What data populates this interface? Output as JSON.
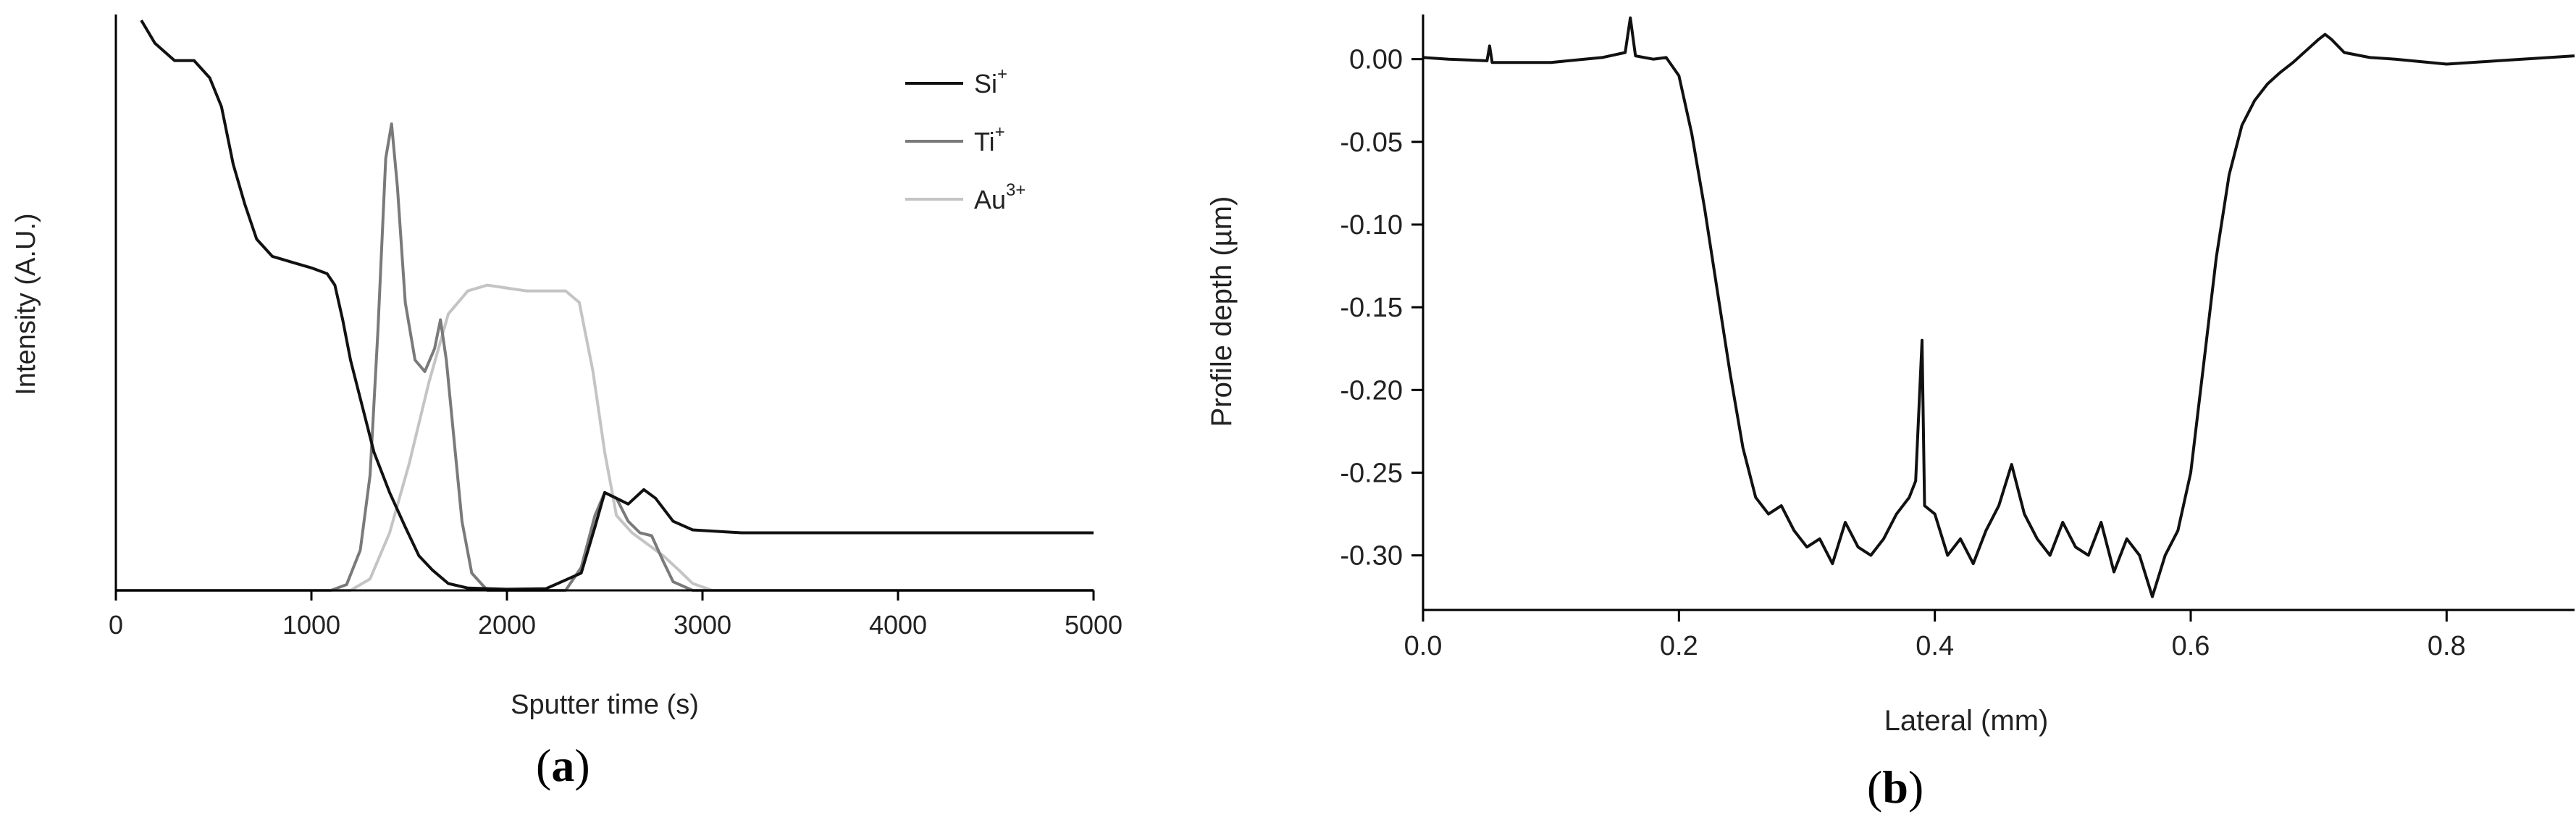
{
  "panel_a": {
    "caption_open": "(",
    "caption_letter": "a",
    "caption_close": ")"
  },
  "panel_b": {
    "caption_open": "(",
    "caption_letter": "b",
    "caption_close": ")"
  },
  "chart_data": [
    {
      "type": "line",
      "panel": "a",
      "xlabel": "Sputter time (s)",
      "ylabel": "Intensity (A.U.)",
      "xlim": [
        0,
        5000
      ],
      "ylim": [
        0,
        1.0
      ],
      "xticks": [
        0,
        1000,
        2000,
        3000,
        4000,
        5000
      ],
      "yticks_shown": false,
      "grid": false,
      "legend_position": "top-right",
      "series": [
        {
          "name": "Si",
          "name_sup": "+",
          "color": "#111111",
          "points": [
            [
              130,
              0.99
            ],
            [
              200,
              0.95
            ],
            [
              300,
              0.92
            ],
            [
              400,
              0.92
            ],
            [
              480,
              0.89
            ],
            [
              540,
              0.84
            ],
            [
              600,
              0.74
            ],
            [
              660,
              0.67
            ],
            [
              720,
              0.61
            ],
            [
              800,
              0.58
            ],
            [
              900,
              0.57
            ],
            [
              1000,
              0.56
            ],
            [
              1080,
              0.55
            ],
            [
              1120,
              0.53
            ],
            [
              1160,
              0.47
            ],
            [
              1200,
              0.4
            ],
            [
              1260,
              0.32
            ],
            [
              1320,
              0.24
            ],
            [
              1400,
              0.17
            ],
            [
              1480,
              0.11
            ],
            [
              1550,
              0.06
            ],
            [
              1620,
              0.035
            ],
            [
              1700,
              0.012
            ],
            [
              1800,
              0.004
            ],
            [
              2000,
              0.002
            ],
            [
              2200,
              0.003
            ],
            [
              2380,
              0.03
            ],
            [
              2450,
              0.11
            ],
            [
              2500,
              0.17
            ],
            [
              2560,
              0.16
            ],
            [
              2620,
              0.15
            ],
            [
              2700,
              0.175
            ],
            [
              2760,
              0.16
            ],
            [
              2850,
              0.12
            ],
            [
              2950,
              0.105
            ],
            [
              3200,
              0.1
            ],
            [
              3600,
              0.1
            ],
            [
              4000,
              0.1
            ],
            [
              4500,
              0.1
            ],
            [
              5000,
              0.1
            ]
          ]
        },
        {
          "name": "Ti",
          "name_sup": "+",
          "color": "#7a7a7a",
          "points": [
            [
              0,
              0.0
            ],
            [
              1100,
              0.0
            ],
            [
              1180,
              0.01
            ],
            [
              1250,
              0.07
            ],
            [
              1300,
              0.2
            ],
            [
              1340,
              0.45
            ],
            [
              1380,
              0.75
            ],
            [
              1410,
              0.81
            ],
            [
              1440,
              0.7
            ],
            [
              1480,
              0.5
            ],
            [
              1530,
              0.4
            ],
            [
              1580,
              0.38
            ],
            [
              1630,
              0.42
            ],
            [
              1660,
              0.47
            ],
            [
              1690,
              0.4
            ],
            [
              1730,
              0.26
            ],
            [
              1770,
              0.12
            ],
            [
              1820,
              0.03
            ],
            [
              1900,
              0.0
            ],
            [
              2300,
              0.0
            ],
            [
              2380,
              0.04
            ],
            [
              2450,
              0.13
            ],
            [
              2500,
              0.17
            ],
            [
              2560,
              0.16
            ],
            [
              2620,
              0.12
            ],
            [
              2680,
              0.1
            ],
            [
              2740,
              0.095
            ],
            [
              2800,
              0.05
            ],
            [
              2850,
              0.015
            ],
            [
              2950,
              0.0
            ],
            [
              5000,
              0.0
            ]
          ]
        },
        {
          "name": "Au",
          "name_sup": "3+",
          "color": "#c4c4c4",
          "points": [
            [
              0,
              0.0
            ],
            [
              1200,
              0.0
            ],
            [
              1300,
              0.02
            ],
            [
              1400,
              0.1
            ],
            [
              1500,
              0.22
            ],
            [
              1600,
              0.36
            ],
            [
              1700,
              0.48
            ],
            [
              1800,
              0.52
            ],
            [
              1900,
              0.53
            ],
            [
              2100,
              0.52
            ],
            [
              2300,
              0.52
            ],
            [
              2370,
              0.5
            ],
            [
              2440,
              0.38
            ],
            [
              2500,
              0.24
            ],
            [
              2560,
              0.13
            ],
            [
              2640,
              0.1
            ],
            [
              2720,
              0.08
            ],
            [
              2800,
              0.06
            ],
            [
              2880,
              0.035
            ],
            [
              2950,
              0.012
            ],
            [
              3050,
              0.0
            ],
            [
              5000,
              0.0
            ]
          ]
        }
      ]
    },
    {
      "type": "line",
      "panel": "b",
      "xlabel": "Lateral (mm)",
      "ylabel": "Profile depth (µm)",
      "xlim": [
        0,
        0.9
      ],
      "ylim": [
        -0.333,
        0.027
      ],
      "xticks": [
        "0.0",
        "0.2",
        "0.4",
        "0.6",
        "0.8"
      ],
      "yticks": [
        "0.00",
        "-0.05",
        "-0.10",
        "-0.15",
        "-0.20",
        "-0.25",
        "-0.30"
      ],
      "grid": false,
      "series": [
        {
          "color": "#111111",
          "points": [
            [
              0.0,
              0.001
            ],
            [
              0.02,
              0.0
            ],
            [
              0.05,
              -0.001
            ],
            [
              0.052,
              0.008
            ],
            [
              0.054,
              -0.002
            ],
            [
              0.1,
              -0.002
            ],
            [
              0.14,
              0.001
            ],
            [
              0.158,
              0.004
            ],
            [
              0.162,
              0.025
            ],
            [
              0.166,
              0.002
            ],
            [
              0.18,
              0.0
            ],
            [
              0.19,
              0.001
            ],
            [
              0.2,
              -0.01
            ],
            [
              0.21,
              -0.045
            ],
            [
              0.22,
              -0.09
            ],
            [
              0.23,
              -0.14
            ],
            [
              0.24,
              -0.19
            ],
            [
              0.25,
              -0.235
            ],
            [
              0.26,
              -0.265
            ],
            [
              0.27,
              -0.275
            ],
            [
              0.28,
              -0.27
            ],
            [
              0.29,
              -0.285
            ],
            [
              0.3,
              -0.295
            ],
            [
              0.31,
              -0.29
            ],
            [
              0.32,
              -0.305
            ],
            [
              0.33,
              -0.28
            ],
            [
              0.34,
              -0.295
            ],
            [
              0.35,
              -0.3
            ],
            [
              0.36,
              -0.29
            ],
            [
              0.37,
              -0.275
            ],
            [
              0.38,
              -0.265
            ],
            [
              0.385,
              -0.255
            ],
            [
              0.39,
              -0.17
            ],
            [
              0.392,
              -0.27
            ],
            [
              0.4,
              -0.275
            ],
            [
              0.41,
              -0.3
            ],
            [
              0.42,
              -0.29
            ],
            [
              0.43,
              -0.305
            ],
            [
              0.44,
              -0.285
            ],
            [
              0.45,
              -0.27
            ],
            [
              0.46,
              -0.245
            ],
            [
              0.47,
              -0.275
            ],
            [
              0.48,
              -0.29
            ],
            [
              0.49,
              -0.3
            ],
            [
              0.5,
              -0.28
            ],
            [
              0.51,
              -0.295
            ],
            [
              0.52,
              -0.3
            ],
            [
              0.53,
              -0.28
            ],
            [
              0.54,
              -0.31
            ],
            [
              0.55,
              -0.29
            ],
            [
              0.56,
              -0.3
            ],
            [
              0.57,
              -0.325
            ],
            [
              0.58,
              -0.3
            ],
            [
              0.59,
              -0.285
            ],
            [
              0.6,
              -0.25
            ],
            [
              0.61,
              -0.185
            ],
            [
              0.62,
              -0.12
            ],
            [
              0.63,
              -0.07
            ],
            [
              0.64,
              -0.04
            ],
            [
              0.65,
              -0.025
            ],
            [
              0.66,
              -0.015
            ],
            [
              0.67,
              -0.008
            ],
            [
              0.68,
              -0.002
            ],
            [
              0.69,
              0.005
            ],
            [
              0.7,
              0.012
            ],
            [
              0.705,
              0.015
            ],
            [
              0.71,
              0.012
            ],
            [
              0.72,
              0.004
            ],
            [
              0.74,
              0.001
            ],
            [
              0.76,
              0.0
            ],
            [
              0.8,
              -0.003
            ],
            [
              0.84,
              -0.001
            ],
            [
              0.88,
              0.001
            ],
            [
              0.9,
              0.002
            ]
          ]
        }
      ]
    }
  ]
}
